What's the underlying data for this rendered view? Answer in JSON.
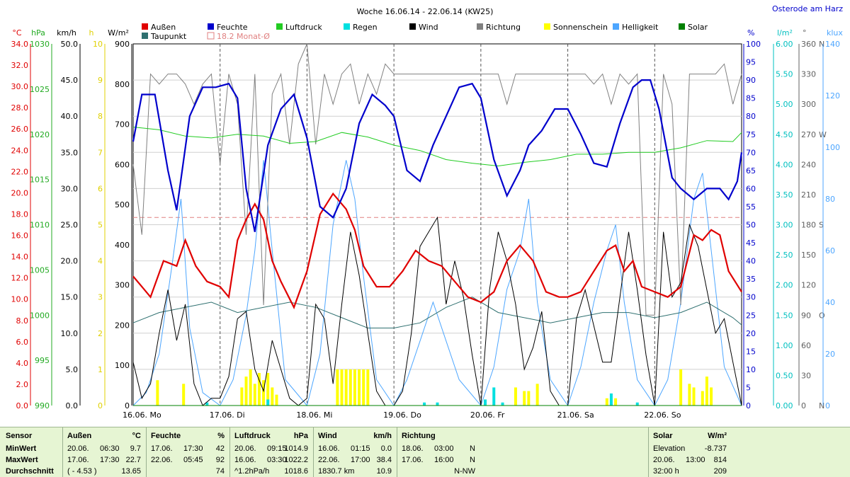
{
  "chart_data": {
    "type": "line",
    "title": "Woche 16.06.14 - 22.06.14 (KW25)",
    "location": "Osterode am Harz",
    "legend": [
      {
        "name": "Außen",
        "color": "#e00000"
      },
      {
        "name": "Taupunkt",
        "color": "#2f7070"
      },
      {
        "name": "Feuchte",
        "color": "#0000cc"
      },
      {
        "name": "18.2 Monat-Ø",
        "color": "#e08080"
      },
      {
        "name": "Luftdruck",
        "color": "#22cc22"
      },
      {
        "name": "Regen",
        "color": "#00e0e0"
      },
      {
        "name": "Wind",
        "color": "#000000"
      },
      {
        "name": "Richtung",
        "color": "#808080"
      },
      {
        "name": "Sonnenschein",
        "color": "#ffff00"
      },
      {
        "name": "Helligkeit",
        "color": "#4da6ff"
      },
      {
        "name": "Solar",
        "color": "#008000"
      }
    ],
    "x_labels": [
      "16.06. Mo",
      "17.06. Di",
      "18.06. Mi",
      "19.06. Do",
      "20.06. Fr",
      "21.06. Sa",
      "22.06. So"
    ],
    "axes_left": [
      {
        "unit": "°C",
        "color": "#e00000",
        "ticks": [
          "0.0",
          "2.0",
          "4.0",
          "6.0",
          "8.0",
          "10.0",
          "12.0",
          "14.0",
          "16.0",
          "18.0",
          "20.0",
          "22.0",
          "24.0",
          "26.0",
          "28.0",
          "30.0",
          "32.0",
          "34.0"
        ]
      },
      {
        "unit": "hPa",
        "color": "#22aa22",
        "ticks": [
          "990",
          "995",
          "1000",
          "1005",
          "1010",
          "1015",
          "1020",
          "1025",
          "1030"
        ]
      },
      {
        "unit": "km/h",
        "color": "#000000",
        "ticks": [
          "0.0",
          "5.0",
          "10.0",
          "15.0",
          "20.0",
          "25.0",
          "30.0",
          "35.0",
          "40.0",
          "45.0",
          "50.0"
        ]
      },
      {
        "unit": "h",
        "color": "#e0d000",
        "ticks": [
          "0",
          "1",
          "2",
          "3",
          "4",
          "5",
          "6",
          "7",
          "8",
          "9",
          "10"
        ]
      },
      {
        "unit": "W/m²",
        "color": "#000000",
        "ticks": [
          "0",
          "100",
          "200",
          "300",
          "400",
          "500",
          "600",
          "700",
          "800",
          "900"
        ]
      }
    ],
    "axes_right": [
      {
        "unit": "%",
        "color": "#0000cc",
        "ticks": [
          "0",
          "5",
          "10",
          "15",
          "20",
          "25",
          "30",
          "35",
          "40",
          "45",
          "50",
          "55",
          "60",
          "65",
          "70",
          "75",
          "80",
          "85",
          "90",
          "95",
          "100"
        ]
      },
      {
        "unit": "l/m²",
        "color": "#00c0c0",
        "ticks": [
          "0.00",
          "0.50",
          "1.00",
          "1.50",
          "2.00",
          "2.50",
          "3.00",
          "3.50",
          "4.00",
          "4.50",
          "5.00",
          "5.50",
          "6.00"
        ]
      },
      {
        "unit": "°",
        "color": "#606060",
        "ticks": [
          "0",
          "30",
          "60",
          "90",
          "120",
          "150",
          "180",
          "210",
          "240",
          "270",
          "300",
          "330",
          "360"
        ],
        "dirs": [
          "N",
          "O",
          "S",
          "W",
          "N"
        ]
      },
      {
        "unit": "klux",
        "color": "#4da6ff",
        "ticks": [
          "0",
          "20",
          "40",
          "60",
          "80",
          "100",
          "120",
          "140"
        ]
      }
    ],
    "series": [
      {
        "name": "Außen",
        "unit": "°C",
        "x": [
          0,
          0.1,
          0.2,
          0.35,
          0.5,
          0.6,
          0.72,
          0.85,
          1,
          1.1,
          1.2,
          1.3,
          1.4,
          1.5,
          1.6,
          1.7,
          1.85,
          2,
          2.15,
          2.3,
          2.45,
          2.55,
          2.65,
          2.8,
          2.95,
          3.1,
          3.25,
          3.4,
          3.55,
          3.7,
          3.85,
          4,
          4.15,
          4.3,
          4.45,
          4.6,
          4.75,
          4.9,
          5,
          5.15,
          5.3,
          5.45,
          5.55,
          5.65,
          5.75,
          5.85,
          6,
          6.15,
          6.3,
          6.45,
          6.55,
          6.65,
          6.75,
          6.85,
          7
        ],
        "y": [
          12.5,
          11.5,
          10.5,
          14,
          13.5,
          16,
          13.5,
          12,
          11.5,
          10.5,
          16,
          18,
          19.5,
          18,
          14,
          12,
          9.5,
          13,
          18.5,
          20.5,
          19,
          17,
          13.5,
          11.5,
          11.5,
          13,
          15,
          14,
          13.5,
          12,
          10.5,
          10,
          11,
          14,
          15.5,
          14,
          11,
          10.5,
          10.5,
          11,
          13,
          15,
          15.5,
          13,
          14,
          11.5,
          11,
          10.5,
          11.5,
          16.5,
          16,
          17,
          16.5,
          13,
          11
        ]
      },
      {
        "name": "Taupunkt",
        "unit": "°C",
        "x": [
          0,
          0.3,
          0.6,
          0.9,
          1.2,
          1.5,
          1.8,
          2.1,
          2.4,
          2.7,
          3,
          3.3,
          3.6,
          3.9,
          4.2,
          4.5,
          4.8,
          5.1,
          5.4,
          5.7,
          6,
          6.3,
          6.6,
          6.9,
          7
        ],
        "y": [
          8,
          9,
          9.5,
          10,
          9,
          9.5,
          10,
          9.5,
          8.5,
          7.5,
          7.5,
          8,
          9.5,
          10.5,
          9,
          8.5,
          8,
          8.5,
          9,
          9,
          8.5,
          9,
          10,
          8.5,
          7.8
        ]
      },
      {
        "name": "Feuchte",
        "unit": "%",
        "x": [
          0,
          0.1,
          0.25,
          0.4,
          0.5,
          0.65,
          0.8,
          0.95,
          1.1,
          1.2,
          1.3,
          1.4,
          1.55,
          1.7,
          1.85,
          2,
          2.15,
          2.3,
          2.45,
          2.6,
          2.75,
          2.9,
          3,
          3.15,
          3.3,
          3.45,
          3.6,
          3.75,
          3.9,
          4,
          4.15,
          4.3,
          4.45,
          4.55,
          4.7,
          4.85,
          5,
          5.15,
          5.3,
          5.45,
          5.6,
          5.75,
          5.85,
          5.95,
          6.05,
          6.2,
          6.3,
          6.45,
          6.6,
          6.75,
          6.85,
          6.95,
          7
        ],
        "y": [
          73,
          86,
          86,
          65,
          54,
          80,
          88,
          88,
          89,
          85,
          60,
          48,
          72,
          82,
          86,
          74,
          55,
          52,
          60,
          78,
          86,
          83,
          80,
          65,
          62,
          72,
          80,
          88,
          89,
          85,
          68,
          58,
          65,
          72,
          76,
          82,
          82,
          75,
          67,
          66,
          78,
          88,
          90,
          90,
          82,
          63,
          60,
          57,
          60,
          60,
          57,
          62,
          70
        ]
      },
      {
        "name": "Luftdruck",
        "unit": "hPa",
        "x": [
          0,
          0.3,
          0.6,
          0.9,
          1.2,
          1.5,
          1.8,
          2.1,
          2.4,
          2.7,
          3,
          3.3,
          3.6,
          3.9,
          4.2,
          4.5,
          4.8,
          5.1,
          5.4,
          5.7,
          6,
          6.3,
          6.6,
          6.9,
          7
        ],
        "y": [
          1020.8,
          1020.5,
          1019.8,
          1019.6,
          1020,
          1019.8,
          1019,
          1019.2,
          1020.2,
          1019.7,
          1018.8,
          1018.2,
          1017.2,
          1016.8,
          1016.5,
          1016.9,
          1017.2,
          1017.8,
          1017.8,
          1018,
          1018,
          1018.5,
          1019.3,
          1019.2,
          1020.2
        ]
      },
      {
        "name": "Wind",
        "unit": "km/h",
        "x": [
          0,
          0.1,
          0.2,
          0.3,
          0.4,
          0.5,
          0.6,
          0.7,
          0.8,
          0.9,
          1,
          1.1,
          1.2,
          1.3,
          1.4,
          1.5,
          1.6,
          1.7,
          1.8,
          1.9,
          2,
          2.1,
          2.2,
          2.3,
          2.4,
          2.5,
          2.6,
          2.7,
          2.8,
          2.9,
          3,
          3.1,
          3.2,
          3.3,
          3.4,
          3.5,
          3.6,
          3.7,
          3.8,
          3.9,
          4,
          4.1,
          4.2,
          4.3,
          4.4,
          4.5,
          4.6,
          4.7,
          4.8,
          4.9,
          5,
          5.1,
          5.2,
          5.3,
          5.4,
          5.5,
          5.6,
          5.7,
          5.8,
          5.9,
          6,
          6.1,
          6.2,
          6.3,
          6.4,
          6.5,
          6.6,
          6.7,
          6.8,
          6.9,
          7
        ],
        "y": [
          6,
          1,
          3,
          10,
          16,
          9,
          14,
          3,
          0,
          1,
          1,
          4,
          12,
          13,
          5,
          2,
          9,
          5,
          1,
          0,
          1,
          14,
          12,
          3,
          14,
          24,
          18,
          10,
          2,
          0,
          0,
          2,
          10,
          22,
          24,
          26,
          14,
          20,
          15,
          7,
          0,
          16,
          24,
          20,
          14,
          5,
          8,
          13,
          2,
          0,
          0,
          12,
          16,
          11,
          6,
          6,
          15,
          24,
          16,
          7,
          0,
          24,
          15,
          17,
          25,
          22,
          16,
          10,
          12,
          6,
          0
        ]
      },
      {
        "name": "Richtung",
        "unit": "°",
        "x": [
          0,
          0.1,
          0.2,
          0.3,
          0.4,
          0.5,
          0.6,
          0.7,
          0.8,
          0.9,
          1,
          1.1,
          1.2,
          1.3,
          1.4,
          1.5,
          1.6,
          1.7,
          1.8,
          1.9,
          2,
          2.1,
          2.2,
          2.3,
          2.4,
          2.5,
          2.6,
          2.7,
          2.8,
          2.9,
          3,
          3.1,
          3.2,
          3.3,
          3.4,
          3.5,
          3.6,
          3.7,
          3.8,
          3.9,
          4,
          4.1,
          4.2,
          4.3,
          4.4,
          4.5,
          4.6,
          4.7,
          4.8,
          4.9,
          5,
          5.1,
          5.2,
          5.3,
          5.4,
          5.5,
          5.6,
          5.7,
          5.8,
          5.9,
          6,
          6.1,
          6.2,
          6.3,
          6.4,
          6.5,
          6.6,
          6.7,
          6.8,
          6.9,
          7
        ],
        "y": [
          240,
          170,
          330,
          320,
          330,
          330,
          320,
          300,
          320,
          330,
          240,
          330,
          300,
          170,
          330,
          100,
          310,
          330,
          260,
          340,
          360,
          260,
          330,
          300,
          330,
          340,
          300,
          330,
          310,
          340,
          330,
          330,
          330,
          330,
          330,
          330,
          330,
          330,
          330,
          330,
          330,
          330,
          330,
          300,
          330,
          330,
          330,
          330,
          330,
          330,
          330,
          330,
          330,
          320,
          330,
          300,
          330,
          320,
          330,
          90,
          90,
          330,
          300,
          100,
          330,
          330,
          330,
          330,
          340,
          300,
          330
        ]
      },
      {
        "name": "Helligkeit",
        "unit": "klux",
        "x": [
          0,
          0.15,
          0.3,
          0.45,
          0.55,
          0.65,
          0.8,
          1,
          1.15,
          1.3,
          1.4,
          1.5,
          1.6,
          1.75,
          2,
          2.15,
          2.3,
          2.45,
          2.55,
          2.65,
          2.8,
          3,
          3.15,
          3.3,
          3.45,
          3.6,
          3.75,
          4,
          4.15,
          4.3,
          4.45,
          4.55,
          4.65,
          4.8,
          5,
          5.15,
          5.3,
          5.45,
          5.55,
          5.65,
          5.8,
          6,
          6.15,
          6.3,
          6.45,
          6.55,
          6.65,
          6.8,
          7
        ],
        "y": [
          0,
          5,
          20,
          55,
          80,
          30,
          5,
          0,
          10,
          35,
          60,
          95,
          60,
          10,
          0,
          20,
          70,
          95,
          80,
          50,
          10,
          0,
          10,
          25,
          40,
          25,
          10,
          0,
          15,
          45,
          60,
          80,
          40,
          10,
          0,
          15,
          40,
          60,
          70,
          40,
          10,
          0,
          10,
          40,
          80,
          90,
          60,
          15,
          0
        ]
      },
      {
        "name": "Regen",
        "unit": "l/m²",
        "x": [
          0.85,
          1.55,
          3.35,
          3.5,
          4.05,
          4.15,
          4.25,
          5.5,
          5.8
        ],
        "y": [
          0.05,
          0.1,
          0.05,
          0.05,
          0.1,
          0.3,
          0.05,
          0.2,
          0.05
        ]
      },
      {
        "name": "Sonnenschein",
        "unit": "h",
        "x": [
          0.28,
          0.58,
          1.25,
          1.3,
          1.35,
          1.4,
          1.45,
          1.5,
          1.55,
          1.6,
          1.65,
          2.35,
          2.4,
          2.45,
          2.5,
          2.55,
          2.6,
          2.65,
          2.7,
          4.4,
          4.5,
          4.55,
          4.65,
          5.45,
          5.55,
          6.3,
          6.4,
          6.45,
          6.55,
          6.6,
          6.65
        ],
        "y": [
          0.7,
          0.6,
          0.5,
          0.8,
          1,
          0.6,
          0.9,
          0.7,
          0.9,
          0.5,
          0.3,
          1,
          1,
          1,
          1,
          1,
          1,
          1,
          1,
          0.5,
          0.4,
          0.4,
          0.6,
          0.2,
          0.2,
          1,
          0.6,
          0.5,
          0.4,
          0.8,
          0.5
        ]
      },
      {
        "name": "Solar",
        "unit": "W/m²",
        "x": [
          0,
          1,
          2,
          3,
          4,
          5,
          6,
          7
        ],
        "y": [
          0,
          0,
          0,
          0,
          0,
          0,
          0,
          0
        ]
      }
    ],
    "monthly_avg": 18.2
  },
  "table": {
    "sensor_label": "Sensor",
    "row_labels": [
      "MinWert",
      "MaxWert",
      "Durchschnitt"
    ],
    "cols": [
      {
        "name": "Außen",
        "unit": "°C",
        "rows": [
          [
            "20.06.",
            "06:30",
            "9.7"
          ],
          [
            "17.06.",
            "17:30",
            "22.7"
          ],
          [
            "( - 4.53 )",
            "",
            "13.65"
          ]
        ]
      },
      {
        "name": "Feuchte",
        "unit": "%",
        "rows": [
          [
            "17.06.",
            "17:30",
            "42"
          ],
          [
            "22.06.",
            "05:45",
            "92"
          ],
          [
            "",
            "",
            "74"
          ]
        ]
      },
      {
        "name": "Luftdruck",
        "unit": "hPa",
        "rows": [
          [
            "20.06.",
            "09:15",
            "1014.9"
          ],
          [
            "16.06.",
            "03:30",
            "1022.2"
          ],
          [
            "^1.2hPa/h",
            "",
            "1018.6"
          ]
        ]
      },
      {
        "name": "Wind",
        "unit": "km/h",
        "rows": [
          [
            "16.06.",
            "01:15",
            "0.0"
          ],
          [
            "22.06.",
            "17:00",
            "38.4"
          ],
          [
            "1830.7 km",
            "",
            "10.9"
          ]
        ]
      },
      {
        "name": "Richtung",
        "unit": "",
        "rows": [
          [
            "18.06.",
            "03:00",
            "N"
          ],
          [
            "17.06.",
            "16:00",
            "N"
          ],
          [
            "",
            "",
            "N-NW"
          ]
        ]
      },
      {
        "name": "Solar",
        "unit": "W/m²",
        "rows": [
          [
            "Elevation",
            "",
            "-8.737"
          ],
          [
            "20.06.",
            "13:00",
            "814"
          ],
          [
            "32:00 h",
            "",
            "209"
          ]
        ]
      }
    ]
  }
}
